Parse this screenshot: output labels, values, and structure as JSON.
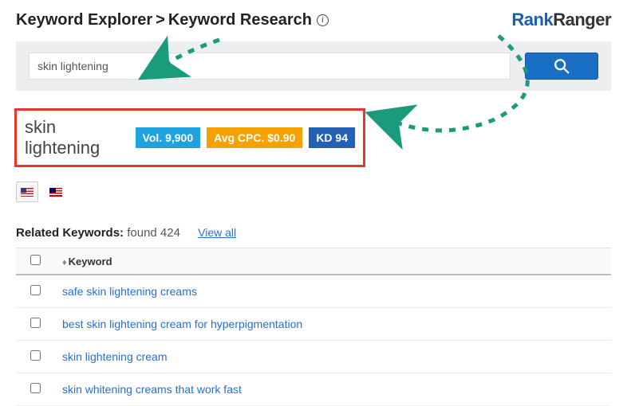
{
  "breadcrumb": {
    "part1": "Keyword Explorer",
    "sep": ">",
    "part2": "Keyword Research"
  },
  "logo": {
    "part1": "Rank",
    "part2": "Ranger"
  },
  "search": {
    "value": "skin lightening"
  },
  "result": {
    "keyword": "skin lightening",
    "vol_label": "Vol. 9,900",
    "cpc_label": "Avg CPC. $0.90",
    "kd_label": "KD 94"
  },
  "related": {
    "title": "Related Keywords:",
    "found_text": "found 424",
    "view_all": "View all",
    "col_keyword": "Keyword",
    "rows": [
      "safe skin lightening creams",
      "best skin lightening cream for hyperpigmentation",
      "skin lightening cream",
      "skin whitening creams that work fast"
    ]
  },
  "colors": {
    "highlight_border": "#e8372a",
    "badge_vol": "#1ea3e0",
    "badge_cpc": "#f5a200",
    "badge_kd": "#2460b4",
    "link": "#2a6fc9",
    "search_btn": "#1a6fc4",
    "arrow": "#1a9b7b"
  }
}
